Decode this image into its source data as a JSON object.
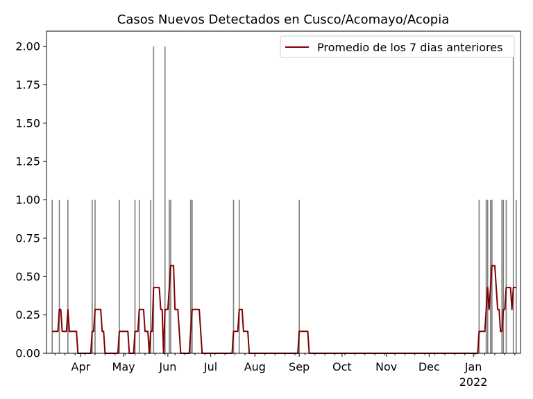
{
  "chart_data": {
    "type": "bar",
    "title": "Casos Nuevos Detectados en Cusco/Acomayo/Acopia",
    "xlabel": "",
    "ylabel": "",
    "ylim": [
      0,
      2.1
    ],
    "yticks": [
      "0.00",
      "0.25",
      "0.50",
      "0.75",
      "1.00",
      "1.25",
      "1.50",
      "1.75",
      "2.00"
    ],
    "ytick_values": [
      0,
      0.25,
      0.5,
      0.75,
      1.0,
      1.25,
      1.5,
      1.75,
      2.0
    ],
    "xlim": [
      "2021-03-08",
      "2022-02-03"
    ],
    "xticks": [
      {
        "date": "2021-04-01",
        "label": "Apr",
        "sublabel": ""
      },
      {
        "date": "2021-05-01",
        "label": "May",
        "sublabel": ""
      },
      {
        "date": "2021-06-01",
        "label": "Jun",
        "sublabel": ""
      },
      {
        "date": "2021-07-01",
        "label": "Jul",
        "sublabel": ""
      },
      {
        "date": "2021-08-01",
        "label": "Aug",
        "sublabel": ""
      },
      {
        "date": "2021-09-01",
        "label": "Sep",
        "sublabel": ""
      },
      {
        "date": "2021-10-01",
        "label": "Oct",
        "sublabel": ""
      },
      {
        "date": "2021-11-01",
        "label": "Nov",
        "sublabel": ""
      },
      {
        "date": "2021-12-01",
        "label": "Dec",
        "sublabel": ""
      },
      {
        "date": "2022-01-01",
        "label": "Jan",
        "sublabel": "2022"
      }
    ],
    "bar_color": "#808080",
    "line_color": "#800000",
    "daily_cases": [
      {
        "date": "2021-03-12",
        "value": 1
      },
      {
        "date": "2021-03-17",
        "value": 1
      },
      {
        "date": "2021-03-23",
        "value": 1
      },
      {
        "date": "2021-04-09",
        "value": 1
      },
      {
        "date": "2021-04-11",
        "value": 1
      },
      {
        "date": "2021-04-28",
        "value": 1
      },
      {
        "date": "2021-05-09",
        "value": 1
      },
      {
        "date": "2021-05-12",
        "value": 1
      },
      {
        "date": "2021-05-20",
        "value": 1
      },
      {
        "date": "2021-05-22",
        "value": 2
      },
      {
        "date": "2021-05-30",
        "value": 2
      },
      {
        "date": "2021-06-02",
        "value": 1
      },
      {
        "date": "2021-06-03",
        "value": 1
      },
      {
        "date": "2021-06-17",
        "value": 1
      },
      {
        "date": "2021-06-18",
        "value": 1
      },
      {
        "date": "2021-07-17",
        "value": 1
      },
      {
        "date": "2021-07-21",
        "value": 1
      },
      {
        "date": "2021-09-01",
        "value": 1
      },
      {
        "date": "2022-01-05",
        "value": 1
      },
      {
        "date": "2022-01-10",
        "value": 1
      },
      {
        "date": "2022-01-11",
        "value": 1
      },
      {
        "date": "2022-01-13",
        "value": 1
      },
      {
        "date": "2022-01-14",
        "value": 1
      },
      {
        "date": "2022-01-21",
        "value": 1
      },
      {
        "date": "2022-01-22",
        "value": 1
      },
      {
        "date": "2022-01-24",
        "value": 1
      },
      {
        "date": "2022-01-29",
        "value": 2
      },
      {
        "date": "2022-01-31",
        "value": 1
      }
    ],
    "legend": {
      "entries": [
        "Promedio de los 7 dias anteriores"
      ],
      "placement": "upper-right"
    },
    "series": [
      {
        "name": "Promedio de los 7 dias anteriores",
        "kind": "line",
        "window_days": 7
      }
    ]
  }
}
